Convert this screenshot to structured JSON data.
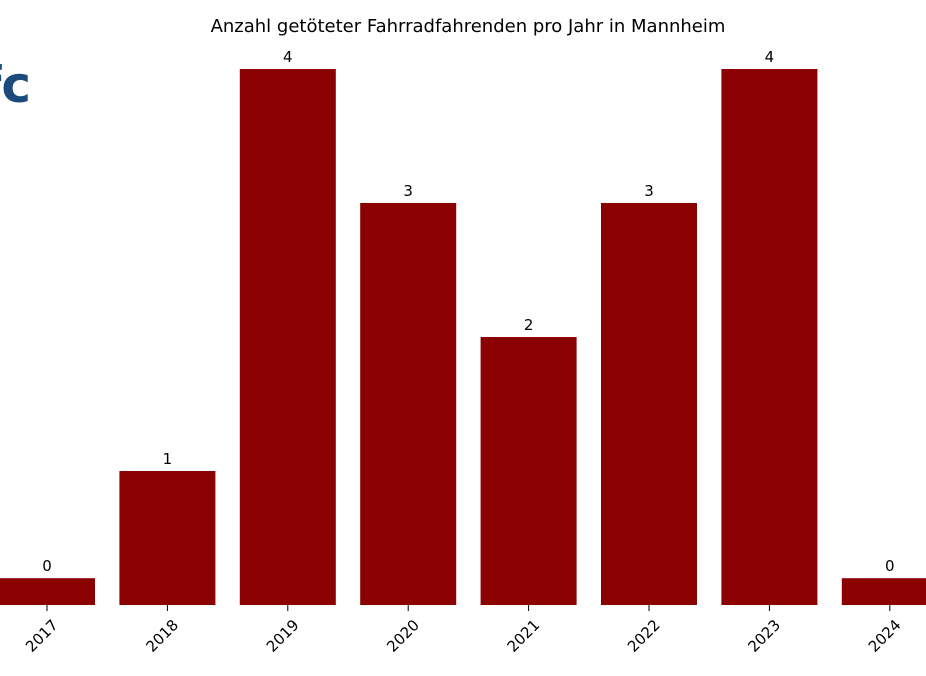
{
  "logo": {
    "text": "fc",
    "color": "#1a4b7c"
  },
  "chart_data": {
    "type": "bar",
    "title": "Anzahl getöteter Fahrradfahrenden pro Jahr in Mannheim",
    "xlabel": "",
    "ylabel": "",
    "categories": [
      "2017",
      "2018",
      "2019",
      "2020",
      "2021",
      "2022",
      "2023",
      "2024"
    ],
    "values": [
      0,
      1,
      4,
      3,
      2,
      3,
      4,
      0
    ],
    "data_labels": [
      "0",
      "1",
      "4",
      "3",
      "2",
      "3",
      "4",
      "0"
    ],
    "ylim": [
      0,
      4
    ],
    "zero_value_bar_height_value": 0.2,
    "bar_color": "#8b0000",
    "grid": false,
    "legend": "none",
    "x_tick_rotation_deg": -45
  }
}
